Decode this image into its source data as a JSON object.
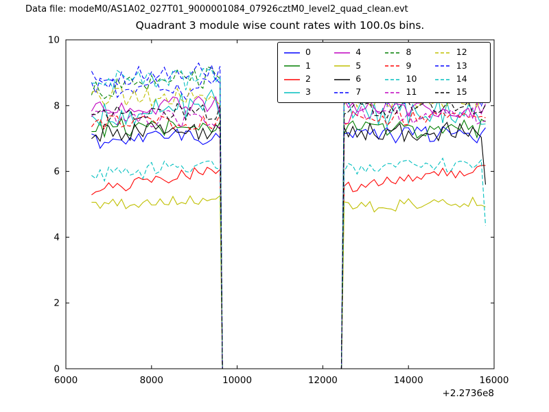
{
  "figure": {
    "data_file_label": "Data file: modeM0/AS1A02_027T01_9000001084_07926cztM0_level2_quad_clean.evt",
    "title": "Quadrant 3 module wise count rates with 100.0s bins."
  },
  "chart_data": {
    "type": "line",
    "title": "Quadrant 3 module wise count rates with 100.0s bins.",
    "xlabel": "",
    "ylabel": "",
    "xlim": [
      6000,
      16000
    ],
    "ylim": [
      0,
      10
    ],
    "x_ticks": [
      "6000",
      "8000",
      "10000",
      "12000",
      "14000",
      "16000"
    ],
    "y_ticks": [
      "0",
      "2",
      "4",
      "6",
      "8",
      "10"
    ],
    "x_offset_label": "+2.2736e8",
    "grid": false,
    "legend_position": "upper center",
    "legend_columns": 4,
    "bin_seconds": 100,
    "segments": {
      "data_start": 6600,
      "gap_start": 9655,
      "gap_end": 12435,
      "data_end": 15800
    },
    "series": [
      {
        "label": "0",
        "color": "#0000ff",
        "dashed": false,
        "mean1": 7.0,
        "mean2": 7.1,
        "amp": 0.26,
        "trend1": 0.2,
        "trend2": 0,
        "end_y": null
      },
      {
        "label": "1",
        "color": "#007f00",
        "dashed": false,
        "mean1": 7.35,
        "mean2": 7.3,
        "amp": 0.3,
        "trend1": 0,
        "trend2": 0,
        "end_y": null
      },
      {
        "label": "2",
        "color": "#ff0000",
        "dashed": false,
        "mean1": 5.75,
        "mean2": 5.8,
        "amp": 0.18,
        "trend1": 0.7,
        "trend2": 0.6,
        "end_y": null
      },
      {
        "label": "3",
        "color": "#00bfbf",
        "dashed": false,
        "mean1": 7.9,
        "mean2": 7.8,
        "amp": 0.45,
        "trend1": 0.3,
        "trend2": 0,
        "end_y": null
      },
      {
        "label": "4",
        "color": "#bf00bf",
        "dashed": false,
        "mean1": 8.0,
        "mean2": 7.9,
        "amp": 0.3,
        "trend1": 0,
        "trend2": 0,
        "end_y": null
      },
      {
        "label": "5",
        "color": "#bfbf00",
        "dashed": false,
        "mean1": 5.05,
        "mean2": 5.0,
        "amp": 0.18,
        "trend1": 0.15,
        "trend2": 0.2,
        "end_y": null
      },
      {
        "label": "6",
        "color": "#000000",
        "dashed": false,
        "mean1": 7.2,
        "mean2": 7.2,
        "amp": 0.3,
        "trend1": 0,
        "trend2": 0,
        "end_y": 5.6
      },
      {
        "label": "7",
        "color": "#0000ff",
        "dashed": true,
        "mean1": 8.5,
        "mean2": 8.3,
        "amp": 0.34,
        "trend1": 0,
        "trend2": 0,
        "end_y": null
      },
      {
        "label": "8",
        "color": "#007f00",
        "dashed": true,
        "mean1": 8.7,
        "mean2": 8.6,
        "amp": 0.34,
        "trend1": 0.4,
        "trend2": 0,
        "end_y": null
      },
      {
        "label": "9",
        "color": "#ff0000",
        "dashed": true,
        "mean1": 7.5,
        "mean2": 7.6,
        "amp": 0.24,
        "trend1": 0,
        "trend2": 0,
        "end_y": null
      },
      {
        "label": "10",
        "color": "#00bfbf",
        "dashed": true,
        "mean1": 6.05,
        "mean2": 6.15,
        "amp": 0.24,
        "trend1": 0.4,
        "trend2": 0.3,
        "end_y": 4.35
      },
      {
        "label": "11",
        "color": "#bf00bf",
        "dashed": true,
        "mean1": 7.6,
        "mean2": 7.7,
        "amp": 0.28,
        "trend1": 0,
        "trend2": 0,
        "end_y": null
      },
      {
        "label": "12",
        "color": "#bfbf00",
        "dashed": true,
        "mean1": 8.25,
        "mean2": 8.2,
        "amp": 0.28,
        "trend1": 0,
        "trend2": 0,
        "end_y": null
      },
      {
        "label": "13",
        "color": "#0000ff",
        "dashed": true,
        "mean1": 8.95,
        "mean2": 8.8,
        "amp": 0.3,
        "trend1": 0.3,
        "trend2": 0,
        "end_y": null
      },
      {
        "label": "14",
        "color": "#00bfbf",
        "dashed": true,
        "mean1": 8.8,
        "mean2": 8.7,
        "amp": 0.34,
        "trend1": 0,
        "trend2": 0,
        "end_y": null
      },
      {
        "label": "15",
        "color": "#000000",
        "dashed": true,
        "mean1": 7.8,
        "mean2": 7.9,
        "amp": 0.28,
        "trend1": 0,
        "trend2": 0,
        "end_y": null
      }
    ]
  }
}
